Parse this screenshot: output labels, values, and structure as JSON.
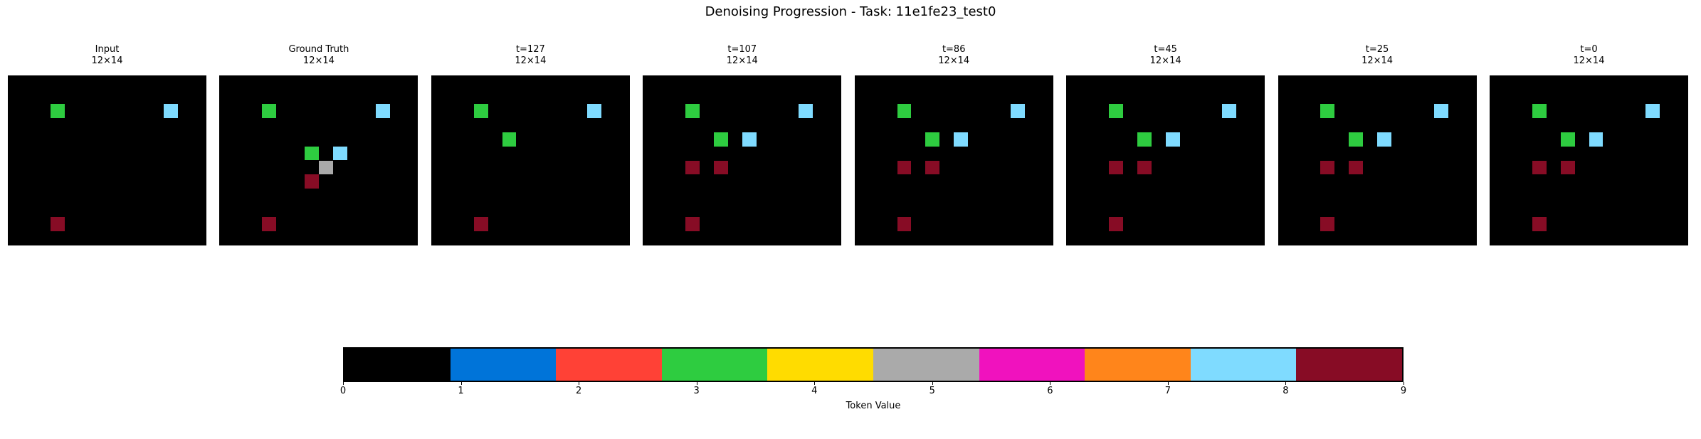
{
  "figure": {
    "background": "#ffffff"
  },
  "chart_data": {
    "type": "heatmap",
    "title": "Denoising Progression - Task: 11e1fe23_test0",
    "grid_rows": 12,
    "grid_cols": 14,
    "background_value": 0,
    "panels": [
      {
        "title": "Input",
        "subtitle": "12×14",
        "cells": [
          [
            2,
            3,
            3
          ],
          [
            2,
            11,
            8
          ],
          [
            10,
            3,
            9
          ]
        ]
      },
      {
        "title": "Ground Truth",
        "subtitle": "12×14",
        "cells": [
          [
            2,
            3,
            3
          ],
          [
            2,
            11,
            8
          ],
          [
            5,
            6,
            3
          ],
          [
            5,
            8,
            8
          ],
          [
            6,
            7,
            5
          ],
          [
            7,
            6,
            9
          ],
          [
            10,
            3,
            9
          ]
        ]
      },
      {
        "title": "t=127",
        "subtitle": "12×14",
        "cells": [
          [
            2,
            3,
            3
          ],
          [
            2,
            11,
            8
          ],
          [
            4,
            5,
            3
          ],
          [
            10,
            3,
            9
          ]
        ]
      },
      {
        "title": "t=107",
        "subtitle": "12×14",
        "cells": [
          [
            2,
            3,
            3
          ],
          [
            2,
            11,
            8
          ],
          [
            4,
            5,
            3
          ],
          [
            4,
            7,
            8
          ],
          [
            6,
            3,
            9
          ],
          [
            6,
            5,
            9
          ],
          [
            10,
            3,
            9
          ]
        ]
      },
      {
        "title": "t=86",
        "subtitle": "12×14",
        "cells": [
          [
            2,
            3,
            3
          ],
          [
            2,
            11,
            8
          ],
          [
            4,
            5,
            3
          ],
          [
            4,
            7,
            8
          ],
          [
            6,
            3,
            9
          ],
          [
            6,
            5,
            9
          ],
          [
            10,
            3,
            9
          ]
        ]
      },
      {
        "title": "t=45",
        "subtitle": "12×14",
        "cells": [
          [
            2,
            3,
            3
          ],
          [
            2,
            11,
            8
          ],
          [
            4,
            5,
            3
          ],
          [
            4,
            7,
            8
          ],
          [
            6,
            3,
            9
          ],
          [
            6,
            5,
            9
          ],
          [
            10,
            3,
            9
          ]
        ]
      },
      {
        "title": "t=25",
        "subtitle": "12×14",
        "cells": [
          [
            2,
            3,
            3
          ],
          [
            2,
            11,
            8
          ],
          [
            4,
            5,
            3
          ],
          [
            4,
            7,
            8
          ],
          [
            6,
            3,
            9
          ],
          [
            6,
            5,
            9
          ],
          [
            10,
            3,
            9
          ]
        ]
      },
      {
        "title": "t=0",
        "subtitle": "12×14",
        "cells": [
          [
            2,
            3,
            3
          ],
          [
            2,
            11,
            8
          ],
          [
            4,
            5,
            3
          ],
          [
            4,
            7,
            8
          ],
          [
            6,
            3,
            9
          ],
          [
            6,
            5,
            9
          ],
          [
            10,
            3,
            9
          ]
        ]
      }
    ],
    "colorbar": {
      "label": "Token Value",
      "vmin": 0,
      "vmax": 9,
      "ticks": [
        "0",
        "1",
        "2",
        "3",
        "4",
        "5",
        "6",
        "7",
        "8",
        "9"
      ],
      "colors": [
        "#000000",
        "#0074D9",
        "#FF4136",
        "#2ECC40",
        "#FFDC00",
        "#AAAAAA",
        "#F012BE",
        "#FF851B",
        "#7FDBFF",
        "#870C25"
      ],
      "color_names": [
        "black",
        "blue",
        "red",
        "green",
        "yellow",
        "gray",
        "magenta",
        "orange",
        "sky-blue",
        "maroon"
      ]
    }
  }
}
